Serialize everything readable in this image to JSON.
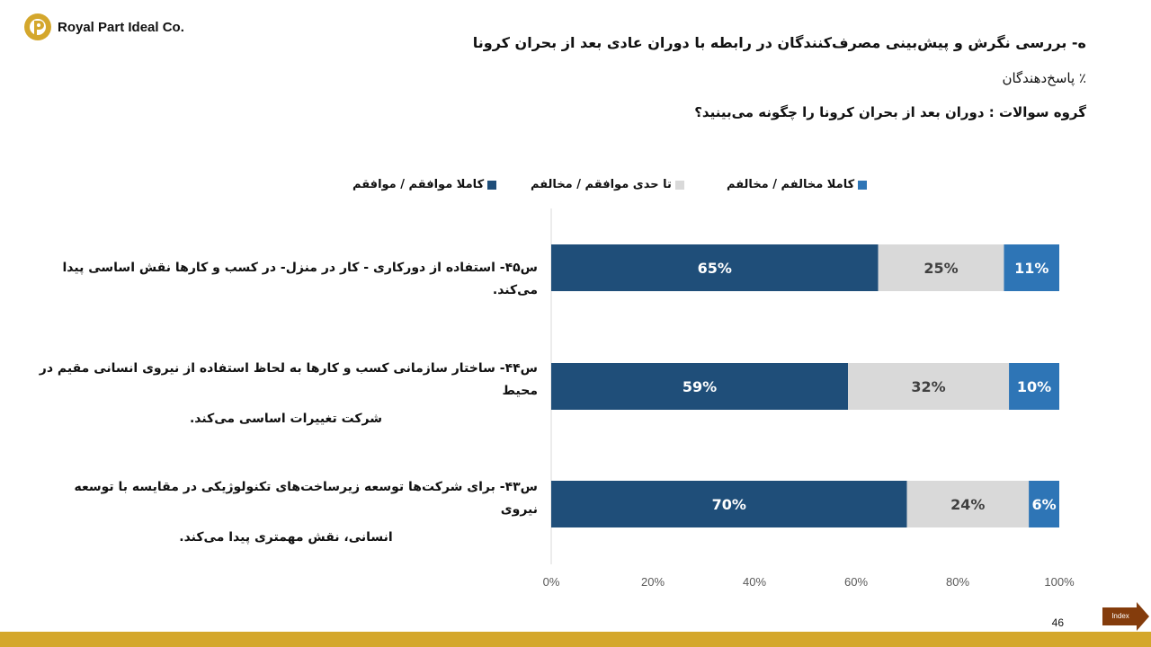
{
  "company": {
    "name": "Royal Part Ideal Co."
  },
  "header": {
    "title": "ه- بررسی نگرش و پیش‌بینی مصرف‌کنندگان در رابطه با دوران عادی بعد از بحران کرونا",
    "subtitle": "٪ پاسخ‌دهندگان",
    "question_group": "گروه سوالات : دوران بعد از بحران کرونا را چگونه می‌بینید؟"
  },
  "legend": {
    "agree": "کاملا موافقم / موافقم",
    "neutral": "تا حدی موافقم / مخالفم",
    "disagree": "کاملا مخالفم / مخالفم"
  },
  "chart_data": {
    "type": "bar",
    "orientation": "horizontal",
    "stacked": true,
    "percent": true,
    "categories": [
      "س۴۵- استفاده از دورکاری - کار در منزل- در کسب و کارها نقش اساسی پیدا می‌کند.",
      "س۴۴- ساختار سازمانی کسب و کارها به لحاظ استفاده از نیروی انسانی مقیم در محیط شرکت تغییرات اساسی می‌کند.",
      "س۴۳- برای شرکت‌ها توسعه زیرساخت‌های تکنولوژیکی در مقایسه با توسعه نیروی انسانی، نقش مهمتری پیدا می‌کند."
    ],
    "category_lines": [
      [
        "س۴۵- استفاده از دورکاری - کار در منزل- در کسب و کارها نقش اساسی پیدا می‌کند."
      ],
      [
        "س۴۴- ساختار سازمانی کسب و کارها به لحاظ استفاده از نیروی انسانی مقیم در محیط",
        "شرکت تغییرات اساسی می‌کند."
      ],
      [
        "س۴۳- برای شرکت‌ها توسعه زیرساخت‌های تکنولوژیکی در مقایسه با توسعه نیروی",
        "انسانی، نقش مهمتری پیدا می‌کند."
      ]
    ],
    "series": [
      {
        "name": "کاملا موافقم / موافقم",
        "values": [
          65,
          59,
          70
        ],
        "labels": [
          "65%",
          "59%",
          "70%"
        ],
        "color": "#1f4e79",
        "label_color": "#ffffff"
      },
      {
        "name": "تا حدی موافقم / مخالفم",
        "values": [
          25,
          32,
          24
        ],
        "labels": [
          "25%",
          "32%",
          "24%"
        ],
        "color": "#d9d9d9",
        "label_color": "#404040"
      },
      {
        "name": "کاملا مخالفم / مخالفم",
        "values": [
          11,
          10,
          6
        ],
        "labels": [
          "11%",
          "10%",
          "6%"
        ],
        "color": "#2e75b6",
        "label_color": "#ffffff"
      }
    ],
    "xaxis": {
      "ticks": [
        "0%",
        "20%",
        "40%",
        "60%",
        "80%",
        "100%"
      ],
      "range": [
        0,
        100
      ]
    },
    "legend_position": "top",
    "grid": false
  },
  "footer": {
    "page_number": "46",
    "index_label": "Index"
  },
  "colors": {
    "accent": "#d4a72c",
    "index_button": "#843c0c"
  }
}
